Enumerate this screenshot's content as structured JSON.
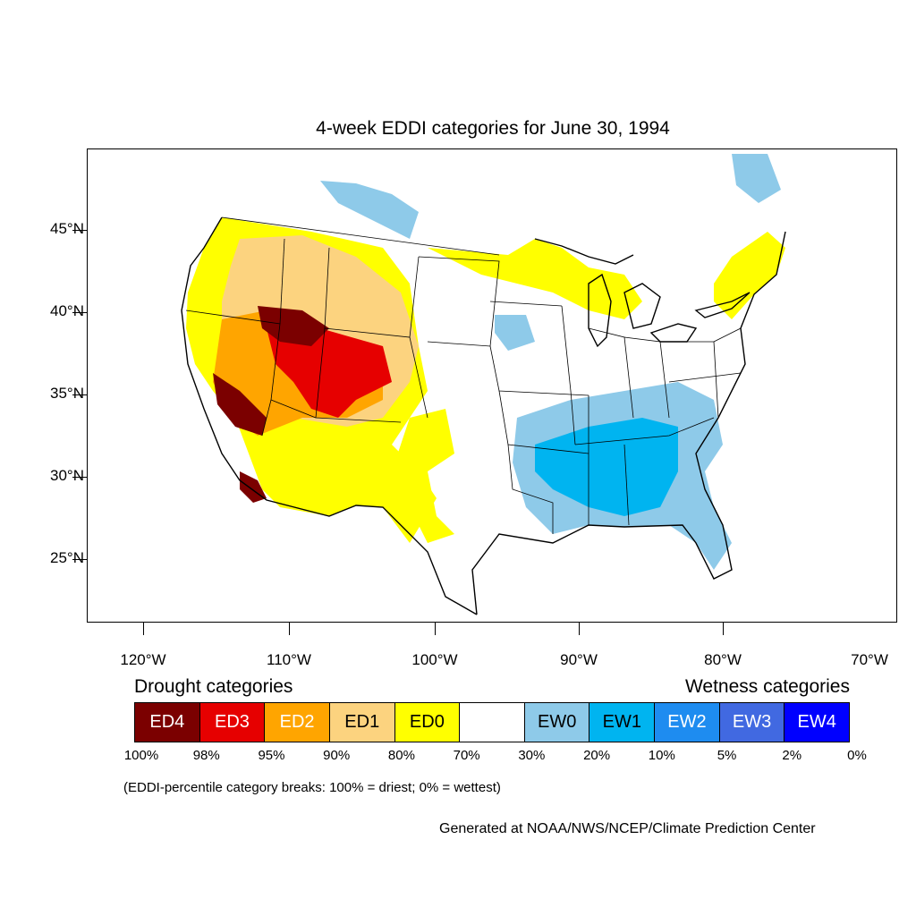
{
  "title": "4-week EDDI categories for June 30, 1994",
  "map": {
    "latitude_labels": [
      "45°N",
      "40°N",
      "35°N",
      "30°N",
      "25°N"
    ],
    "longitude_labels": [
      "120°W",
      "110°W",
      "100°W",
      "90°W",
      "80°W",
      "70°W"
    ],
    "colors": {
      "ED4": "#7b0000",
      "ED3": "#e60000",
      "ED2": "#ffa500",
      "ED1": "#fcd37f",
      "ED0": "#ffff00",
      "neutral": "#ffffff",
      "EW0": "#8ecae9",
      "EW1": "#00b4f0",
      "EW2": "#1e8cf0",
      "EW3": "#4169e1",
      "EW4": "#0000ff"
    }
  },
  "legend": {
    "drought_heading": "Drought categories",
    "wetness_heading": "Wetness categories",
    "categories": [
      {
        "label": "ED4",
        "color": "#7b0000",
        "text_color": "#ffffff"
      },
      {
        "label": "ED3",
        "color": "#e60000",
        "text_color": "#ffffff"
      },
      {
        "label": "ED2",
        "color": "#ffa500",
        "text_color": "#ffffff"
      },
      {
        "label": "ED1",
        "color": "#fcd37f",
        "text_color": "#000000"
      },
      {
        "label": "ED0",
        "color": "#ffff00",
        "text_color": "#000000"
      },
      {
        "label": "",
        "color": "#ffffff",
        "text_color": "#000000"
      },
      {
        "label": "EW0",
        "color": "#8ecae9",
        "text_color": "#000000"
      },
      {
        "label": "EW1",
        "color": "#00b4f0",
        "text_color": "#000000"
      },
      {
        "label": "EW2",
        "color": "#1e8cf0",
        "text_color": "#ffffff"
      },
      {
        "label": "EW3",
        "color": "#4169e1",
        "text_color": "#ffffff"
      },
      {
        "label": "EW4",
        "color": "#0000ff",
        "text_color": "#ffffff"
      }
    ],
    "percent_breaks": [
      "100%",
      "98%",
      "95%",
      "90%",
      "80%",
      "70%",
      "30%",
      "20%",
      "10%",
      "5%",
      "2%",
      "0%"
    ],
    "note": "(EDDI-percentile category breaks: 100% = driest; 0% = wettest)"
  },
  "credit": "Generated at NOAA/NWS/NCEP/Climate Prediction Center"
}
